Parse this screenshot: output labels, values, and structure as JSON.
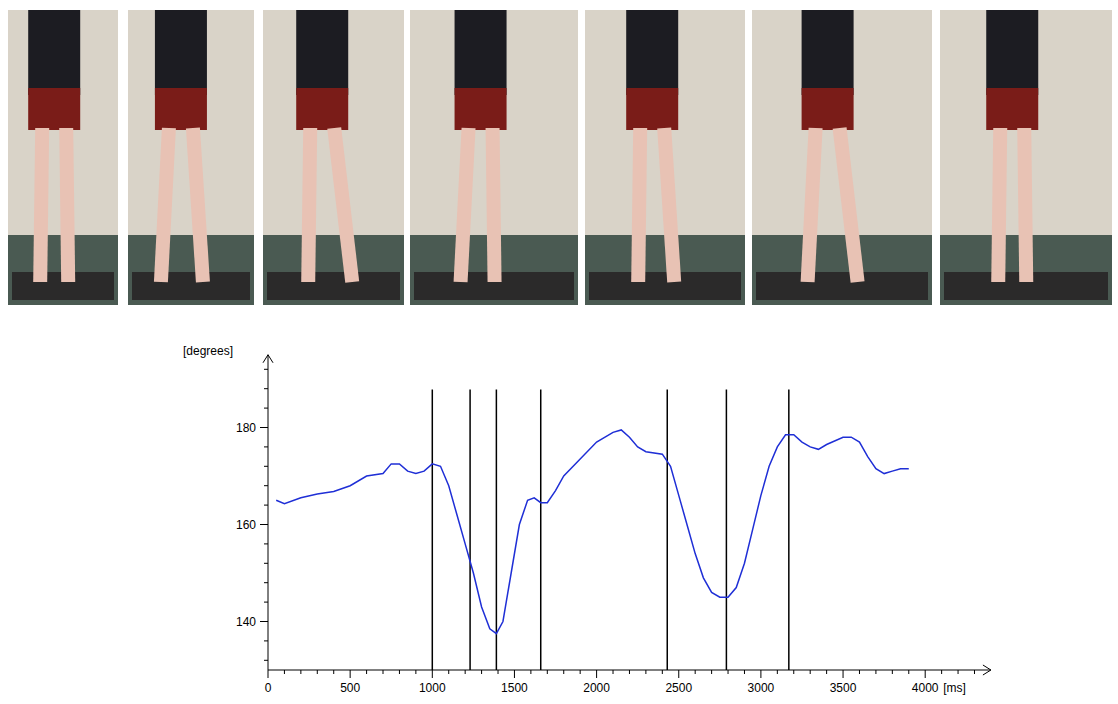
{
  "chart_data": {
    "type": "line",
    "y_label": "[degrees]",
    "x_label": "[ms]",
    "color": "#1f2fd6",
    "x": [
      50,
      100,
      200,
      300,
      400,
      500,
      600,
      700,
      750,
      800,
      850,
      900,
      950,
      1000,
      1050,
      1100,
      1150,
      1200,
      1250,
      1300,
      1350,
      1390,
      1430,
      1480,
      1530,
      1580,
      1620,
      1660,
      1700,
      1750,
      1800,
      1900,
      2000,
      2100,
      2150,
      2200,
      2250,
      2300,
      2400,
      2450,
      2500,
      2550,
      2600,
      2650,
      2700,
      2750,
      2800,
      2850,
      2900,
      2950,
      3000,
      3050,
      3100,
      3150,
      3200,
      3250,
      3300,
      3350,
      3400,
      3500,
      3550,
      3600,
      3650,
      3700,
      3750,
      3800,
      3850,
      3900
    ],
    "values": [
      165,
      164.3,
      165.5,
      166.3,
      166.8,
      168,
      170,
      170.5,
      172.5,
      172.5,
      171,
      170.5,
      171,
      172.5,
      172,
      168,
      162,
      156,
      150,
      143,
      138.5,
      137.5,
      140,
      150,
      160,
      165,
      165.5,
      164.5,
      164.5,
      167,
      170,
      173.5,
      177,
      179,
      179.5,
      178,
      176,
      175,
      174.5,
      172,
      166,
      160,
      154,
      149,
      146,
      145,
      145,
      147,
      152,
      159,
      166,
      172,
      176,
      178.5,
      178.5,
      177,
      176,
      175.5,
      176.5,
      178,
      178,
      177,
      174,
      171.5,
      170.5,
      171,
      171.5,
      171.5
    ],
    "events": [
      1000,
      1230,
      1390,
      1660,
      2430,
      2790,
      3170
    ],
    "xlim": [
      0,
      4400
    ],
    "xticks": [
      0,
      500,
      1000,
      1500,
      2000,
      2500,
      3000,
      3500,
      4000
    ],
    "ylim": [
      130,
      195
    ],
    "yticks": [
      140,
      160,
      180
    ],
    "grid": false
  }
}
